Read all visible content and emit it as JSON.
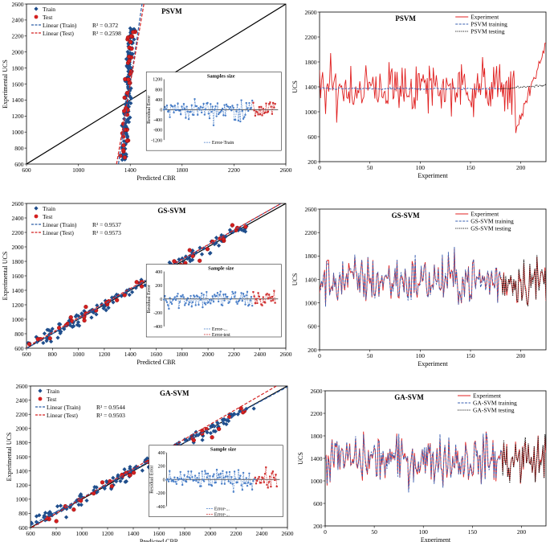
{
  "chart_data": [
    {
      "id": "psvm-scatter",
      "type": "scatter",
      "title": "PSVM",
      "xlabel": "Predicted CBR",
      "ylabel": "Experimental UCS",
      "xlim": [
        600,
        2600
      ],
      "ylim": [
        600,
        2600
      ],
      "xticks": [
        600,
        1000,
        1400,
        1800,
        2200,
        2600
      ],
      "yticks": [
        600,
        800,
        1000,
        1200,
        1400,
        1600,
        1800,
        2000,
        2200,
        2400,
        2600
      ],
      "legend": [
        "Train",
        "Test",
        "Linear (Train)",
        "Linear (Test)"
      ],
      "r2_labels": [
        "R² = 0.372",
        "R² = 0.2598"
      ],
      "pred_spread": 0.04,
      "trend_train": {
        "slope": 11.0,
        "intercept": -13800
      },
      "trend_test": {
        "slope": 9.5,
        "intercept": -11700
      },
      "inset": {
        "title": "Samples size",
        "ylabel": "Residual Error",
        "ylim": [
          -1200,
          1200
        ],
        "yticks": [
          -1200,
          -800,
          -400,
          0,
          400,
          800,
          1200
        ],
        "xticks": [
          0,
          50,
          100,
          150,
          200
        ],
        "legend": [
          "Error-Train"
        ]
      }
    },
    {
      "id": "psvm-line",
      "type": "line",
      "title": "PSVM",
      "xlabel": "Experiment",
      "ylabel": "UCS",
      "xlim": [
        0,
        225
      ],
      "ylim": [
        200,
        2600
      ],
      "xticks": [
        0,
        50,
        100,
        150,
        200
      ],
      "yticks": [
        200,
        600,
        1000,
        1400,
        1800,
        2200,
        2600
      ],
      "legend": [
        "Experiment",
        "PSVM training",
        "PSVM testing"
      ]
    },
    {
      "id": "gssvm-scatter",
      "type": "scatter",
      "title": "GS-SVM",
      "xlabel": "Predicted CBR",
      "ylabel": "Experimental UCS",
      "xlim": [
        600,
        2600
      ],
      "ylim": [
        600,
        2600
      ],
      "xticks": [
        600,
        800,
        1000,
        1200,
        1400,
        1600,
        1800,
        2000,
        2200,
        2400,
        2600
      ],
      "yticks": [
        600,
        800,
        1000,
        1200,
        1400,
        1600,
        1800,
        2000,
        2200,
        2400,
        2600
      ],
      "legend": [
        "Train",
        "Test",
        "Linear (Train)",
        "Linear (Test)"
      ],
      "r2_labels": [
        "R² = 0.9537",
        "R² = 0.9573"
      ],
      "pred_spread": 0.95,
      "trend_train": {
        "slope": 1.02,
        "intercept": -15
      },
      "trend_test": {
        "slope": 1.01,
        "intercept": 10
      },
      "inset": {
        "title": "Sample size",
        "ylabel": "Residual Error",
        "ylim": [
          -400,
          400
        ],
        "yticks": [
          -400,
          -200,
          0,
          200,
          400
        ],
        "xticks": [
          0,
          50,
          100,
          150,
          200
        ],
        "legend": [
          "Error-...",
          "Error-test"
        ]
      }
    },
    {
      "id": "gssvm-line",
      "type": "line",
      "title": "GS-SVM",
      "xlabel": "Experiment",
      "ylabel": "UCS",
      "xlim": [
        0,
        225
      ],
      "ylim": [
        200,
        2600
      ],
      "xticks": [
        0,
        50,
        100,
        150,
        200
      ],
      "yticks": [
        200,
        600,
        1000,
        1400,
        1800,
        2200,
        2600
      ],
      "legend": [
        "Experiment",
        "GS-SVM training",
        "GS-SVM testing"
      ]
    },
    {
      "id": "gasvm-scatter",
      "type": "scatter",
      "title": "GA-SVM",
      "xlabel": "Predicted CBR",
      "ylabel": "Experimental UCS",
      "xlim": [
        600,
        2600
      ],
      "ylim": [
        600,
        2600
      ],
      "xticks": [
        600,
        800,
        1000,
        1200,
        1400,
        1600,
        1800,
        2000,
        2200,
        2400,
        2600
      ],
      "yticks": [
        600,
        800,
        1000,
        1200,
        1400,
        1600,
        1800,
        2000,
        2200,
        2400,
        2600
      ],
      "legend": [
        "Train",
        "Test",
        "Linear (Train)",
        "Linear (Test)"
      ],
      "r2_labels": [
        "R² = 0.9544",
        "R² = 0.9503"
      ],
      "pred_spread": 0.95,
      "trend_train": {
        "slope": 0.98,
        "intercept": 40
      },
      "trend_test": {
        "slope": 1.05,
        "intercept": -40
      },
      "inset": {
        "title": "Sample size",
        "ylabel": "Residual Error",
        "ylim": [
          -400,
          400
        ],
        "yticks": [
          -400,
          -200,
          0,
          200,
          400
        ],
        "xticks": [
          0,
          50,
          100,
          150,
          200
        ],
        "legend": [
          "Error-...",
          "Error-..."
        ]
      }
    },
    {
      "id": "gasvm-line",
      "type": "line",
      "title": "GA-SVM",
      "xlabel": "Experiment",
      "ylabel": "UCS",
      "xlim": [
        0,
        225
      ],
      "ylim": [
        200,
        2600
      ],
      "xticks": [
        0,
        50,
        100,
        150,
        200
      ],
      "yticks": [
        200,
        600,
        1000,
        1400,
        1800,
        2200,
        2600
      ],
      "legend": [
        "Experiment",
        "GA-SVM training",
        "GA-SVM testing"
      ]
    }
  ],
  "colors": {
    "train_marker": "#1f4e8c",
    "test_marker": "#d42020",
    "train_line": "#2e5fa8",
    "test_line": "#d42020",
    "experiment_line": "#e02020",
    "training_line": "#3a5fb0",
    "testing_line": "#1a1a1a",
    "residual_train": "#4a7fc8",
    "residual_test": "#d03030",
    "axis": "#000000",
    "gridline": "#d9d9d9"
  }
}
